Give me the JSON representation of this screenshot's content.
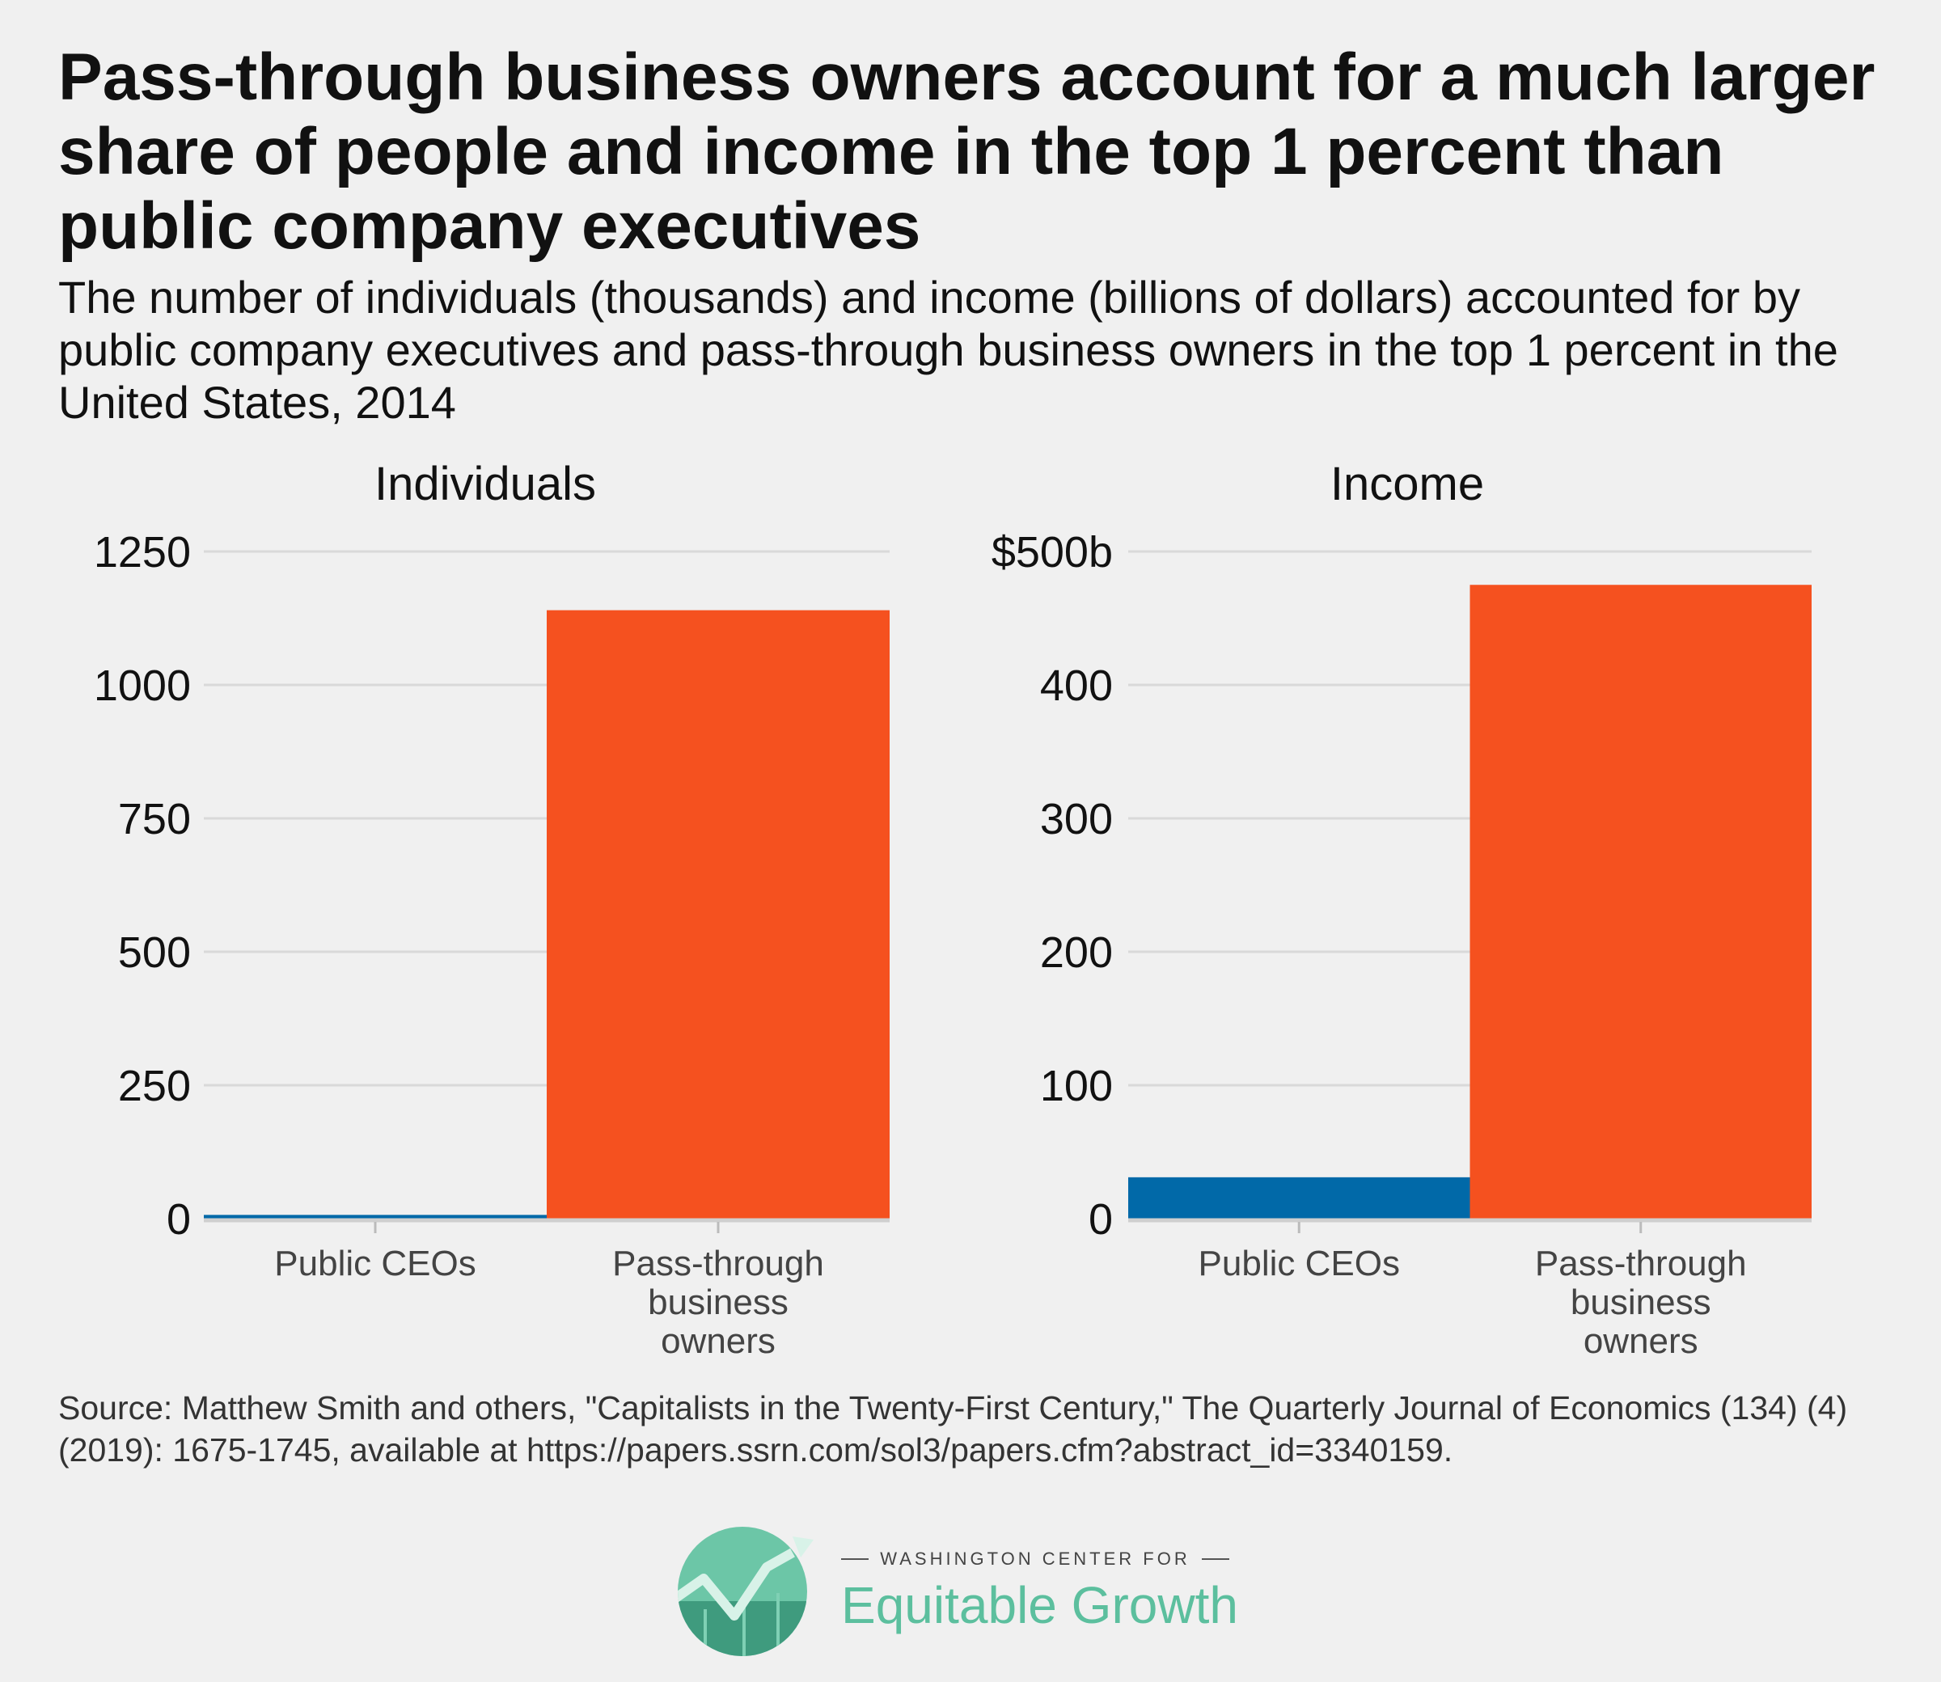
{
  "header": {
    "title": "Pass-through business owners account for a much larger share of people and income in the top 1 percent than public company executives",
    "subtitle": "The number of individuals (thousands) and income (billions of dollars) accounted for by public company executives and pass-through business owners in the top 1 percent in the United States, 2014"
  },
  "colors": {
    "public_ceos": "#0169a8",
    "pass_through": "#f5511f",
    "logo_green": "#5cbf9e"
  },
  "chart_data": [
    {
      "type": "bar",
      "title": "Individuals",
      "categories": [
        "Public CEOs",
        "Pass-through business owners"
      ],
      "category_lines": [
        [
          "Public CEOs"
        ],
        [
          "Pass-through",
          "business",
          "owners"
        ]
      ],
      "values": [
        7,
        1140
      ],
      "ylim": [
        0,
        1250
      ],
      "yticks": [
        0,
        250,
        500,
        750,
        1000,
        1250
      ],
      "ytick_labels": [
        "0",
        "250",
        "500",
        "750",
        "1000",
        "1250"
      ],
      "grid": true,
      "legend": "none"
    },
    {
      "type": "bar",
      "title": "Income",
      "categories": [
        "Public CEOs",
        "Pass-through business owners"
      ],
      "category_lines": [
        [
          "Public CEOs"
        ],
        [
          "Pass-through",
          "business",
          "owners"
        ]
      ],
      "values": [
        31,
        475
      ],
      "ylim": [
        0,
        500
      ],
      "yticks": [
        0,
        100,
        200,
        300,
        400,
        500
      ],
      "ytick_labels": [
        "0",
        "100",
        "200",
        "300",
        "400",
        "$500b"
      ],
      "grid": true,
      "legend": "none"
    }
  ],
  "source": "Source: Matthew Smith and others, \"Capitalists in the Twenty-First Century,\" The Quarterly Journal of Economics (134) (4) (2019): 1675-1745, available at https://papers.ssrn.com/sol3/papers.cfm?abstract_id=3340159.",
  "logo": {
    "top_line": "WASHINGTON CENTER FOR",
    "name": "Equitable Growth"
  }
}
